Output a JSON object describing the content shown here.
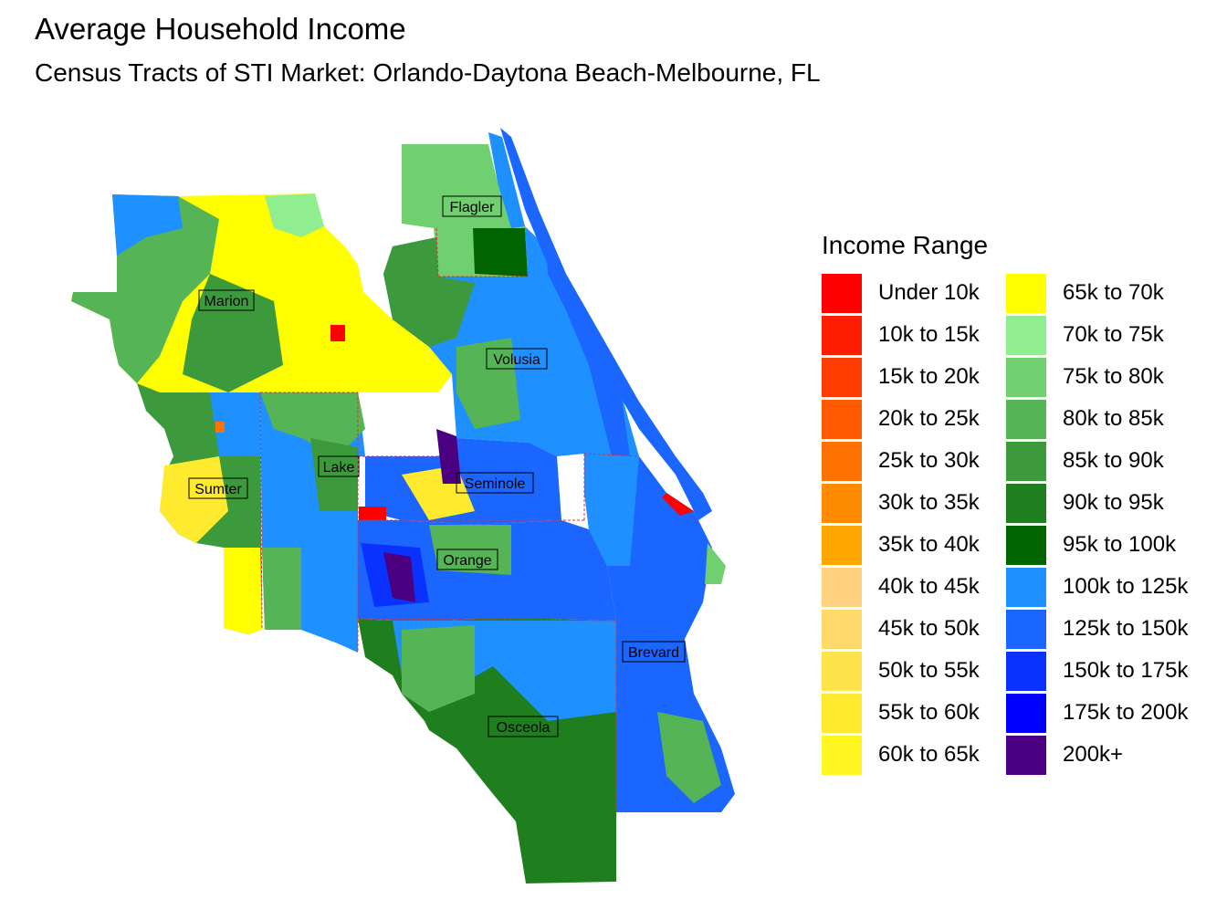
{
  "title": "Average Household Income",
  "subtitle": "Census Tracts of STI Market: Orlando-Daytona Beach-Melbourne, FL",
  "legend": {
    "title": "Income Range",
    "columns": [
      [
        {
          "label": "Under 10k",
          "color": "#FF0000"
        },
        {
          "label": "10k to 15k",
          "color": "#FF1E00"
        },
        {
          "label": "15k to 20k",
          "color": "#FF3C00"
        },
        {
          "label": "20k to 25k",
          "color": "#FF5A00"
        },
        {
          "label": "25k to 30k",
          "color": "#FF7200"
        },
        {
          "label": "30k to 35k",
          "color": "#FF8C00"
        },
        {
          "label": "35k to 40k",
          "color": "#FFA500"
        },
        {
          "label": "40k to 45k",
          "color": "#FFD27F"
        },
        {
          "label": "45k to 50k",
          "color": "#FFDA6A"
        },
        {
          "label": "50k to 55k",
          "color": "#FFE34A"
        },
        {
          "label": "55k to 60k",
          "color": "#FFEA30"
        },
        {
          "label": "60k to 65k",
          "color": "#FFF520"
        }
      ],
      [
        {
          "label": "65k to 70k",
          "color": "#FFFF00"
        },
        {
          "label": "70k to 75k",
          "color": "#90EE90"
        },
        {
          "label": "75k to 80k",
          "color": "#70D070"
        },
        {
          "label": "80k to 85k",
          "color": "#55B455"
        },
        {
          "label": "85k to 90k",
          "color": "#3C9A3C"
        },
        {
          "label": "90k to 95k",
          "color": "#1F7F1F"
        },
        {
          "label": "95k to 100k",
          "color": "#006400"
        },
        {
          "label": "100k to 125k",
          "color": "#1E90FF"
        },
        {
          "label": "125k to 150k",
          "color": "#1A66FF"
        },
        {
          "label": "150k to 175k",
          "color": "#0A32FF"
        },
        {
          "label": "175k to 200k",
          "color": "#0000FF"
        },
        {
          "label": "200k+",
          "color": "#4B0082"
        }
      ]
    ]
  },
  "counties": [
    {
      "name": "Flagler"
    },
    {
      "name": "Marion"
    },
    {
      "name": "Volusia"
    },
    {
      "name": "Lake"
    },
    {
      "name": "Seminole"
    },
    {
      "name": "Sumter"
    },
    {
      "name": "Orange"
    },
    {
      "name": "Brevard"
    },
    {
      "name": "Osceola"
    }
  ]
}
